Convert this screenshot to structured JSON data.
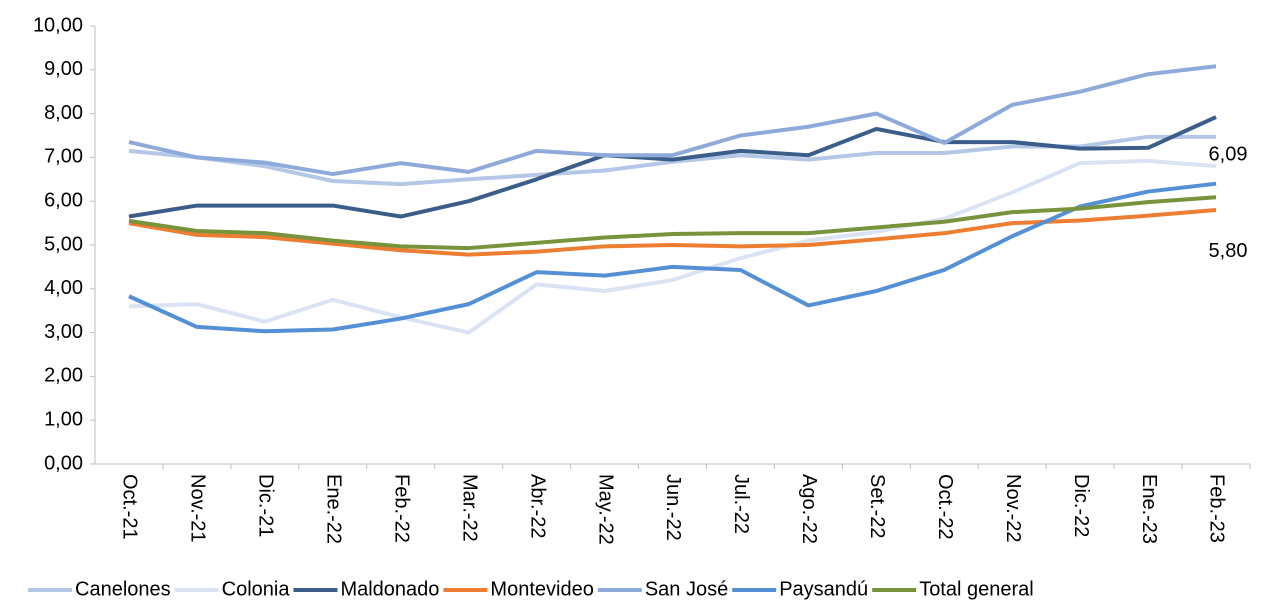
{
  "chart_data": {
    "type": "line",
    "categories": [
      "Oct.-21",
      "Nov.-21",
      "Dic.-21",
      "Ene.-22",
      "Feb.-22",
      "Mar.-22",
      "Abr.-22",
      "May.-22",
      "Jun.-22",
      "Jul.-22",
      "Ago.-22",
      "Set.-22",
      "Oct.-22",
      "Nov.-22",
      "Dic.-22",
      "Ene.-23",
      "Feb.-23"
    ],
    "series": [
      {
        "name": "Canelones",
        "color": "#b4c7e7",
        "values": [
          7.15,
          7.0,
          6.8,
          6.46,
          6.39,
          6.5,
          6.6,
          6.7,
          6.9,
          7.05,
          6.95,
          7.1,
          7.1,
          7.25,
          7.25,
          7.47,
          7.47
        ]
      },
      {
        "name": "Colonia",
        "color": "#dae3f3",
        "values": [
          3.6,
          3.65,
          3.25,
          3.75,
          3.35,
          3.0,
          4.1,
          3.95,
          4.2,
          4.7,
          5.1,
          5.3,
          5.6,
          6.2,
          6.87,
          6.92,
          6.8
        ]
      },
      {
        "name": "Maldonado",
        "color": "#3b5d8a",
        "values": [
          5.65,
          5.9,
          5.9,
          5.9,
          5.65,
          6.0,
          6.5,
          7.05,
          6.95,
          7.15,
          7.05,
          7.65,
          7.35,
          7.35,
          7.2,
          7.22,
          7.92
        ]
      },
      {
        "name": "Montevideo",
        "color": "#ed7d31",
        "values": [
          5.5,
          5.23,
          5.18,
          5.03,
          4.88,
          4.78,
          4.85,
          4.97,
          5.0,
          4.97,
          5.0,
          5.13,
          5.27,
          5.5,
          5.56,
          5.67,
          5.8
        ],
        "value_labels": [
          null,
          null,
          null,
          null,
          null,
          null,
          null,
          null,
          null,
          null,
          null,
          null,
          null,
          null,
          null,
          null,
          "5,80"
        ]
      },
      {
        "name": "San José",
        "color": "#8eaadb",
        "values": [
          7.35,
          7.0,
          6.88,
          6.62,
          6.87,
          6.67,
          7.15,
          7.05,
          7.05,
          7.5,
          7.7,
          8.0,
          7.33,
          8.2,
          8.5,
          8.9,
          9.08
        ]
      },
      {
        "name": "Paysandú",
        "color": "#5590d6",
        "values": [
          3.83,
          3.13,
          3.03,
          3.07,
          3.32,
          3.65,
          4.38,
          4.3,
          4.5,
          4.43,
          3.62,
          3.95,
          4.43,
          5.2,
          5.88,
          6.22,
          6.4
        ]
      },
      {
        "name": "Total general",
        "color": "#77933c",
        "values": [
          5.55,
          5.32,
          5.27,
          5.1,
          4.97,
          4.93,
          5.05,
          5.17,
          5.25,
          5.27,
          5.27,
          5.4,
          5.53,
          5.75,
          5.83,
          5.98,
          6.09
        ],
        "value_labels": [
          null,
          null,
          null,
          null,
          null,
          null,
          null,
          null,
          null,
          null,
          null,
          null,
          null,
          null,
          null,
          null,
          "6,09"
        ]
      }
    ],
    "ylim": [
      0,
      10
    ],
    "yticks": [
      {
        "value": 0,
        "label": "0,00"
      },
      {
        "value": 1,
        "label": "1,00"
      },
      {
        "value": 2,
        "label": "2,00"
      },
      {
        "value": 3,
        "label": "3,00"
      },
      {
        "value": 4,
        "label": "4,00"
      },
      {
        "value": 5,
        "label": "5,00"
      },
      {
        "value": 6,
        "label": "6,00"
      },
      {
        "value": 7,
        "label": "7,00"
      },
      {
        "value": 8,
        "label": "8,00"
      },
      {
        "value": 9,
        "label": "9,00"
      },
      {
        "value": 10,
        "label": "10,00"
      }
    ],
    "legend": "bottom"
  }
}
